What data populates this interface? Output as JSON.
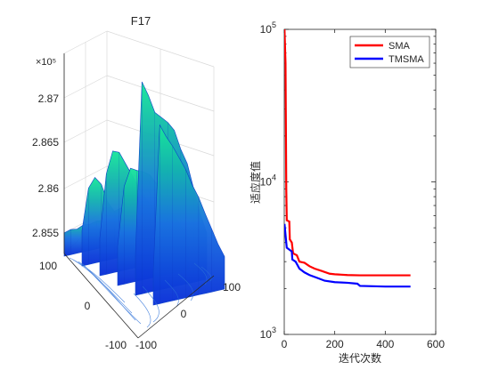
{
  "chart_data": [
    {
      "type": "area",
      "title": "F17",
      "z_multiplier": "×10⁵",
      "z_ticks": [
        "2.87",
        "2.865",
        "2.86",
        "2.855"
      ],
      "x_ticks": [
        "100",
        "0",
        "-100"
      ],
      "y_ticks": [
        "-100",
        "0",
        "100"
      ],
      "zlim": [
        2.852,
        2.874
      ],
      "surface_ridges": [
        {
          "row": 0,
          "values": [
            2.8545,
            2.8547,
            2.8546,
            2.8549,
            2.8548,
            2.855,
            2.8549,
            2.8548,
            2.855,
            2.8549,
            2.8547,
            2.8546
          ]
        },
        {
          "row": 1,
          "values": [
            2.8558,
            2.8602,
            2.8612,
            2.8603,
            2.8582,
            2.8571,
            2.8573,
            2.8566,
            2.8559,
            2.8557,
            2.8555,
            2.8552
          ]
        },
        {
          "row": 2,
          "values": [
            2.856,
            2.8628,
            2.8651,
            2.8648,
            2.8634,
            2.862,
            2.8606,
            2.8594,
            2.8582,
            2.857,
            2.856,
            2.8555
          ]
        },
        {
          "row": 3,
          "values": [
            2.8562,
            2.8625,
            2.8643,
            2.8639,
            2.8636,
            2.8631,
            2.862,
            2.8601,
            2.8591,
            2.8578,
            2.8566,
            2.8558
          ]
        },
        {
          "row": 4,
          "values": [
            2.8563,
            2.8748,
            2.8732,
            2.8712,
            2.8705,
            2.8698,
            2.8688,
            2.8666,
            2.8649,
            2.862,
            2.8592,
            2.857
          ]
        },
        {
          "row": 5,
          "values": [
            2.8556,
            2.8712,
            2.8698,
            2.8686,
            2.8672,
            2.8658,
            2.864,
            2.8625,
            2.8606,
            2.8588,
            2.857,
            2.8555
          ]
        }
      ]
    },
    {
      "type": "line",
      "xlabel": "迭代次数",
      "ylabel": "适应度值",
      "y_scale": "log",
      "xlim": [
        0,
        600
      ],
      "ylim": [
        1000,
        100000
      ],
      "x_ticks": [
        "0",
        "200",
        "400",
        "600"
      ],
      "y_ticks": [
        {
          "value": 1000,
          "base": "10",
          "exp": "3"
        },
        {
          "value": 10000,
          "base": "10",
          "exp": "4"
        },
        {
          "value": 100000,
          "base": "10",
          "exp": "5"
        }
      ],
      "legend_position": "top-right",
      "series": [
        {
          "name": "SMA",
          "color": "#ff0000",
          "points": [
            [
              1,
              100000
            ],
            [
              5,
              60000
            ],
            [
              8,
              9000
            ],
            [
              10,
              5600
            ],
            [
              20,
              5500
            ],
            [
              22,
              4200
            ],
            [
              30,
              4000
            ],
            [
              35,
              3400
            ],
            [
              50,
              3300
            ],
            [
              60,
              3000
            ],
            [
              80,
              2950
            ],
            [
              100,
              2800
            ],
            [
              120,
              2700
            ],
            [
              150,
              2600
            ],
            [
              180,
              2500
            ],
            [
              200,
              2480
            ],
            [
              250,
              2450
            ],
            [
              300,
              2440
            ],
            [
              350,
              2440
            ],
            [
              400,
              2440
            ],
            [
              500,
              2440
            ]
          ]
        },
        {
          "name": "TMSMA",
          "color": "#0000ff",
          "points": [
            [
              1,
              5300
            ],
            [
              5,
              4500
            ],
            [
              10,
              3700
            ],
            [
              20,
              3600
            ],
            [
              30,
              3500
            ],
            [
              32,
              3100
            ],
            [
              45,
              3000
            ],
            [
              60,
              2700
            ],
            [
              80,
              2550
            ],
            [
              100,
              2450
            ],
            [
              130,
              2350
            ],
            [
              160,
              2250
            ],
            [
              200,
              2200
            ],
            [
              250,
              2180
            ],
            [
              290,
              2150
            ],
            [
              300,
              2080
            ],
            [
              400,
              2060
            ],
            [
              500,
              2060
            ]
          ]
        }
      ]
    }
  ]
}
